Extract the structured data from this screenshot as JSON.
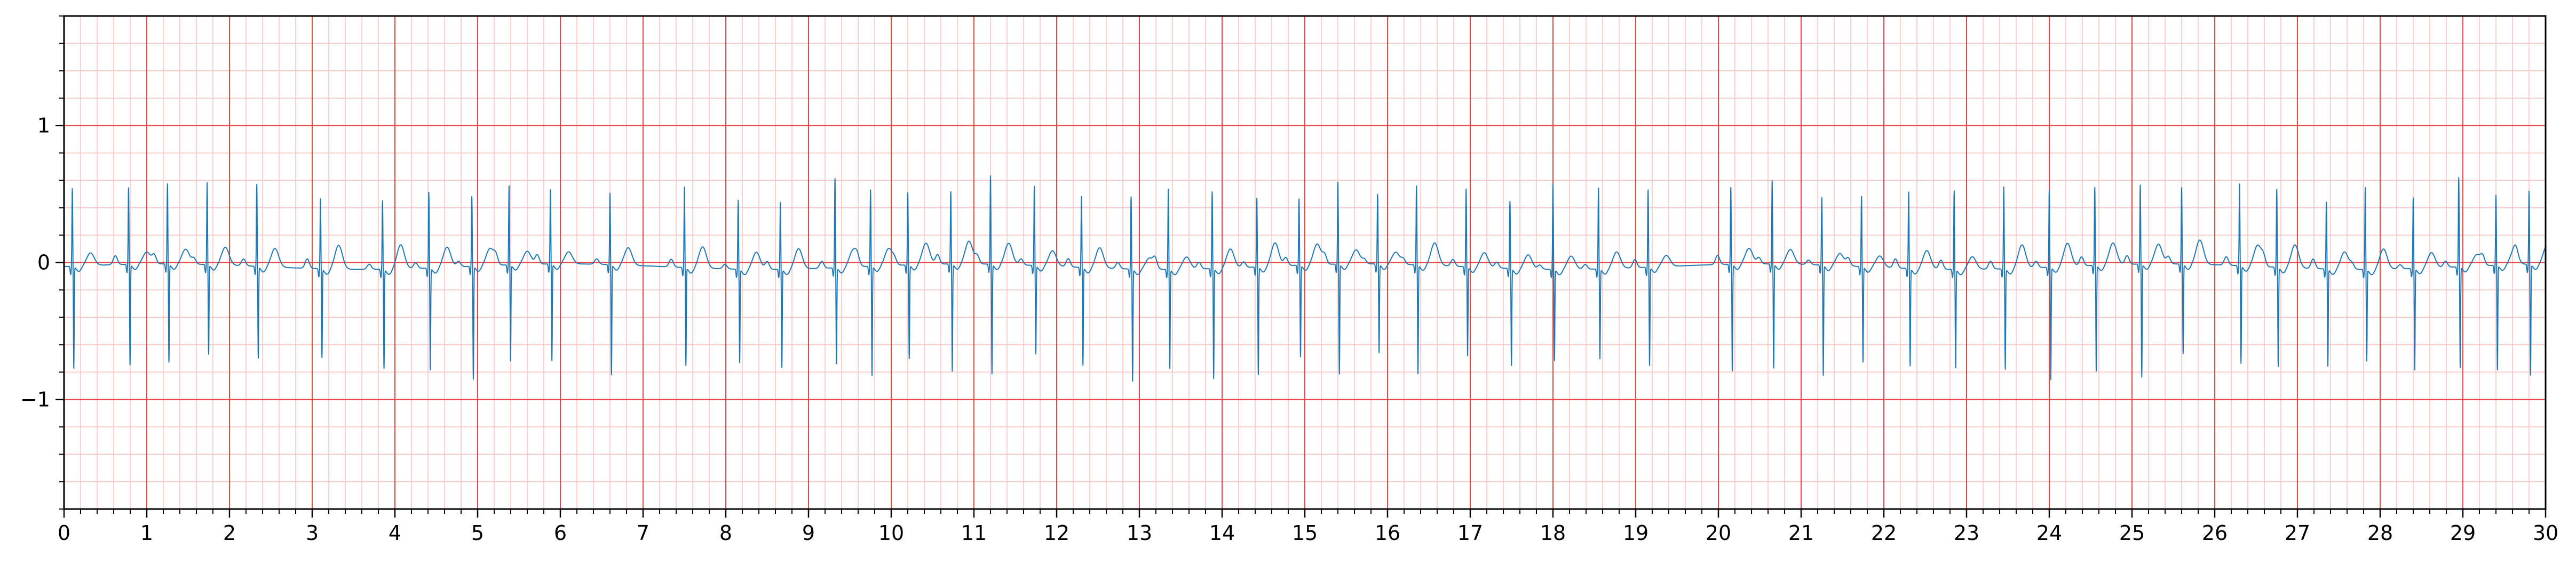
{
  "chart_data": {
    "type": "line",
    "title": "",
    "xlabel": "",
    "ylabel": "",
    "xlim": [
      0,
      30
    ],
    "ylim": [
      -1.8,
      1.8
    ],
    "x_ticks": [
      "0",
      "1",
      "2",
      "3",
      "4",
      "5",
      "6",
      "7",
      "8",
      "9",
      "10",
      "11",
      "12",
      "13",
      "14",
      "15",
      "16",
      "17",
      "18",
      "19",
      "20",
      "21",
      "22",
      "23",
      "24",
      "25",
      "26",
      "27",
      "28",
      "29",
      "30"
    ],
    "y_ticks": [
      {
        "value": 1,
        "label": "1"
      },
      {
        "value": 0,
        "label": "0"
      },
      {
        "value": -1,
        "label": "−1"
      }
    ],
    "grid": {
      "major_step_x": 1,
      "minor_step_x": 0.2,
      "major_step_y": 1,
      "minor_step_y": 0.2,
      "major_color": "#ee4444",
      "minor_color": "#ffc0c0"
    },
    "series": [
      {
        "color": "#1f77b4",
        "beat_times": [
          0.1,
          0.78,
          1.25,
          1.73,
          2.33,
          3.1,
          3.85,
          4.41,
          4.93,
          5.38,
          5.88,
          6.6,
          7.5,
          8.15,
          8.66,
          9.32,
          9.75,
          10.2,
          10.72,
          11.2,
          11.73,
          12.3,
          12.9,
          13.35,
          13.88,
          14.42,
          14.93,
          15.4,
          15.88,
          16.35,
          16.95,
          17.48,
          18.0,
          18.55,
          19.15,
          20.15,
          20.65,
          21.25,
          21.73,
          22.3,
          22.85,
          23.45,
          24.0,
          24.55,
          25.1,
          25.6,
          26.3,
          26.75,
          27.35,
          27.82,
          28.4,
          28.95,
          29.4,
          29.8
        ],
        "r_amplitude": 0.6,
        "s_amplitude": -0.75
      }
    ]
  }
}
